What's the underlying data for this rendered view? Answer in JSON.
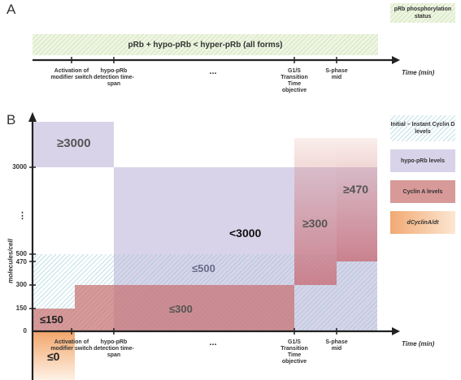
{
  "panelA": {
    "letter": "A",
    "band_label": "pRb + hypo-pRb < hyper-pRb (all forms)",
    "legend": "pRb phosphorylation status",
    "time_label": "Time (min)",
    "ticks": [
      "Activation of modifier switch",
      "hypo-pRb detection time-span",
      "...",
      "G1/S Transition Time objective",
      "S-phase mid"
    ]
  },
  "panelB": {
    "letter": "B",
    "ylabel": "molecules/cell",
    "yticks": [
      "3000",
      "⋮",
      "500",
      "470",
      "300",
      "150",
      "0"
    ],
    "time_label": "Time (min)",
    "ticks": [
      "Activation of modifier switch",
      "hypo-pRb detection time-span",
      "...",
      "G1/S Transition Time objective",
      "S-phase mid"
    ],
    "region_labels": {
      "ge3000": "≥3000",
      "lt3000": "<3000",
      "le500": "≤500",
      "le300": "≤300",
      "le150": "≤150",
      "ge300": "≥300",
      "ge470": "≥470",
      "le0": "≤0"
    },
    "legend": {
      "cyclinD": "Initial – Instant Cyclin D levels",
      "hypo": "hypo-pRb levels",
      "cyclinA": "Cyclin A levels",
      "dcyc": "dCyclinA/dt"
    },
    "colors": {
      "cyclinD": "#8cc8d2",
      "hypo": "#b9afd7",
      "cyclinA": "#c86e6e",
      "dcyc": "#f0a060"
    }
  }
}
